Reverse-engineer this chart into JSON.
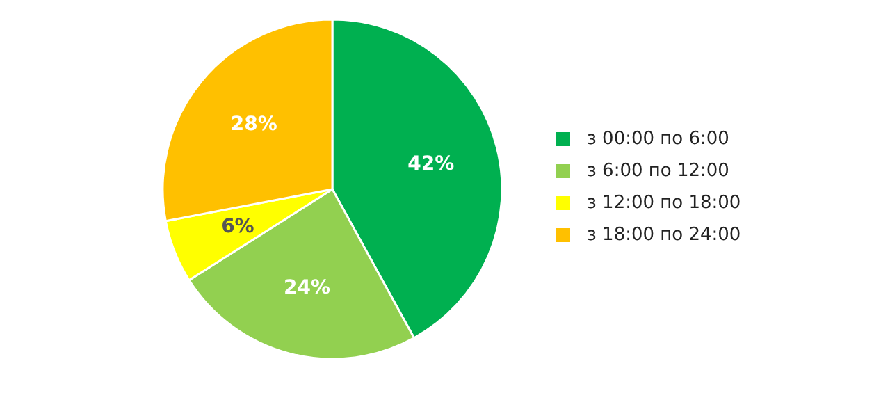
{
  "chart_data": {
    "type": "pie",
    "categories": [
      "з 00:00 по 6:00",
      "з 6:00 по 12:00",
      "з 12:00 по 18:00",
      "з 18:00 по 24:00"
    ],
    "values": [
      42,
      24,
      6,
      28
    ],
    "value_labels": [
      "42%",
      "24%",
      "6%",
      "28%"
    ],
    "colors": [
      "#00b050",
      "#92d050",
      "#ffff00",
      "#ffc000"
    ],
    "legend": "right"
  }
}
